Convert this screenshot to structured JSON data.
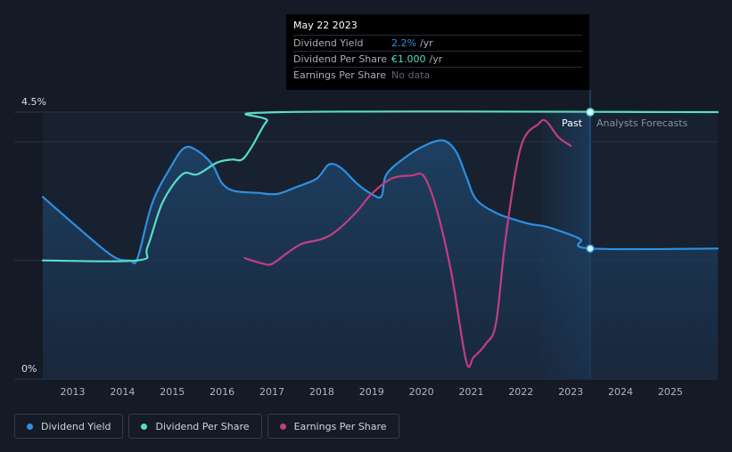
{
  "chart_data": {
    "type": "line",
    "title": "",
    "xlabel": "",
    "ylabel": "",
    "ylim": [
      0,
      4.5
    ],
    "y_tick_labels": [
      "4.5%",
      "0%"
    ],
    "x_ticks": [
      "2013",
      "2014",
      "2015",
      "2016",
      "2017",
      "2018",
      "2019",
      "2020",
      "2021",
      "2022",
      "2023",
      "2024",
      "2025"
    ],
    "past_label": "Past",
    "forecast_label": "Analysts Forecasts",
    "series": [
      {
        "name": "Dividend Yield",
        "color": "#2f8fe0",
        "points": [
          [
            2012.4,
            3.07
          ],
          [
            2013.0,
            2.63
          ],
          [
            2013.6,
            2.2
          ],
          [
            2013.9,
            2.03
          ],
          [
            2014.15,
            2.0
          ],
          [
            2014.3,
            2.03
          ],
          [
            2014.6,
            2.97
          ],
          [
            2015.0,
            3.62
          ],
          [
            2015.25,
            3.9
          ],
          [
            2015.5,
            3.85
          ],
          [
            2015.8,
            3.62
          ],
          [
            2016.0,
            3.3
          ],
          [
            2016.25,
            3.17
          ],
          [
            2016.7,
            3.14
          ],
          [
            2017.1,
            3.12
          ],
          [
            2017.5,
            3.24
          ],
          [
            2017.9,
            3.38
          ],
          [
            2018.15,
            3.62
          ],
          [
            2018.4,
            3.55
          ],
          [
            2018.7,
            3.3
          ],
          [
            2019.0,
            3.12
          ],
          [
            2019.2,
            3.08
          ],
          [
            2019.3,
            3.45
          ],
          [
            2019.7,
            3.75
          ],
          [
            2020.1,
            3.95
          ],
          [
            2020.45,
            4.02
          ],
          [
            2020.7,
            3.83
          ],
          [
            2020.9,
            3.42
          ],
          [
            2021.1,
            3.03
          ],
          [
            2021.5,
            2.8
          ],
          [
            2021.9,
            2.68
          ],
          [
            2022.2,
            2.61
          ],
          [
            2022.5,
            2.57
          ],
          [
            2023.0,
            2.43
          ],
          [
            2023.2,
            2.35
          ],
          [
            2023.39,
            2.2
          ],
          [
            2025.95,
            2.2
          ]
        ]
      },
      {
        "name": "Dividend Per Share",
        "color": "#59dcc7",
        "points": [
          [
            2012.4,
            2.0
          ],
          [
            2014.3,
            2.0
          ],
          [
            2014.5,
            2.22
          ],
          [
            2014.8,
            2.97
          ],
          [
            2015.2,
            3.45
          ],
          [
            2015.5,
            3.45
          ],
          [
            2015.9,
            3.65
          ],
          [
            2016.2,
            3.7
          ],
          [
            2016.4,
            3.7
          ],
          [
            2016.6,
            3.92
          ],
          [
            2016.9,
            4.35
          ],
          [
            2017.2,
            4.5
          ],
          [
            2025.95,
            4.5
          ]
        ]
      },
      {
        "name": "Earnings Per Share",
        "color": "#c23d84",
        "points": [
          [
            2016.45,
            2.04
          ],
          [
            2016.8,
            1.95
          ],
          [
            2017.0,
            1.94
          ],
          [
            2017.3,
            2.12
          ],
          [
            2017.6,
            2.28
          ],
          [
            2018.0,
            2.36
          ],
          [
            2018.3,
            2.5
          ],
          [
            2018.7,
            2.82
          ],
          [
            2019.0,
            3.12
          ],
          [
            2019.4,
            3.38
          ],
          [
            2019.8,
            3.43
          ],
          [
            2020.05,
            3.42
          ],
          [
            2020.3,
            2.88
          ],
          [
            2020.6,
            1.8
          ],
          [
            2020.9,
            0.3
          ],
          [
            2021.05,
            0.37
          ],
          [
            2021.3,
            0.6
          ],
          [
            2021.5,
            0.95
          ],
          [
            2021.7,
            2.43
          ],
          [
            2022.0,
            3.92
          ],
          [
            2022.35,
            4.3
          ],
          [
            2022.5,
            4.35
          ],
          [
            2022.75,
            4.08
          ],
          [
            2023.0,
            3.93
          ]
        ]
      }
    ],
    "forecast_marker_x": 2023.39,
    "marker_points": [
      {
        "series": "Dividend Per Share",
        "x": 2023.39,
        "y": 4.5
      },
      {
        "series": "Dividend Yield",
        "x": 2023.39,
        "y": 2.2
      }
    ]
  },
  "tooltip": {
    "date": "May 22 2023",
    "rows": [
      {
        "label": "Dividend Yield",
        "value": "2.2%",
        "unit": "/yr",
        "color": "#2f8fe0"
      },
      {
        "label": "Dividend Per Share",
        "value": "€1.000",
        "unit": "/yr",
        "color": "#59dcc7"
      },
      {
        "label": "Earnings Per Share",
        "value": "No data",
        "unit": "",
        "color": "#5d646f"
      }
    ]
  },
  "legend": [
    {
      "label": "Dividend Yield",
      "color": "#2f8fe0"
    },
    {
      "label": "Dividend Per Share",
      "color": "#59dcc7"
    },
    {
      "label": "Earnings Per Share",
      "color": "#c23d84"
    }
  ]
}
